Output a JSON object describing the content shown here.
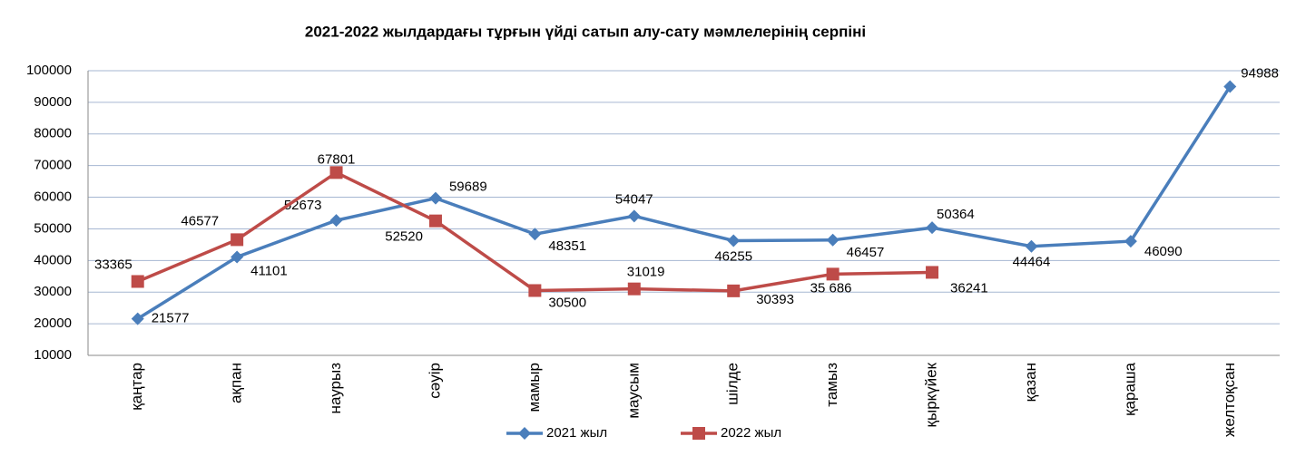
{
  "chart_data": {
    "type": "line",
    "title": "2021-2022 жылдардағы тұрғын үйді сатып алу-сату мәмлелерінің серпіні",
    "categories": [
      "қаңтар",
      "ақпан",
      "наурыз",
      "сәуір",
      "мамыр",
      "маусым",
      "шілде",
      "тамыз",
      "қыркүйек",
      "қазан",
      "қараша",
      "желтоқсан"
    ],
    "series": [
      {
        "name": "2021 жыл",
        "color": "#4a7ebb",
        "marker": "diamond",
        "values": [
          21577,
          41101,
          52673,
          59689,
          48351,
          54047,
          46255,
          46457,
          50364,
          44464,
          46090,
          94988
        ]
      },
      {
        "name": "2022 жыл",
        "color": "#be4b48",
        "marker": "square",
        "values": [
          33365,
          46577,
          67801,
          52520,
          30500,
          31019,
          30393,
          35686,
          36241,
          null,
          null,
          null
        ],
        "value_labels": [
          "33365",
          "46577",
          "67801",
          "52520",
          "30500",
          "31019",
          "30393",
          "35 686",
          "36241",
          null,
          null,
          null
        ]
      }
    ],
    "ylim": [
      10000,
      100000
    ],
    "yticks": [
      10000,
      20000,
      30000,
      40000,
      50000,
      60000,
      70000,
      80000,
      90000,
      100000
    ],
    "grid": true,
    "legend": "bottom"
  }
}
